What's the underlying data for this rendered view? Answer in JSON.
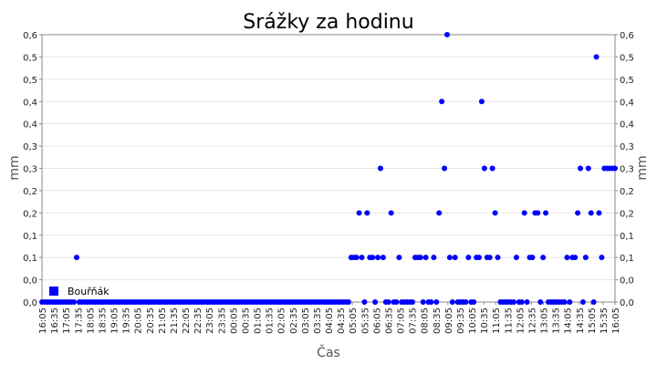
{
  "chart_data": {
    "type": "scatter",
    "title": "Srážky za hodinu",
    "xlabel": "Čas",
    "ylabel": "mm",
    "ylabel_right": "mm",
    "ylim": [
      0,
      0.6
    ],
    "yticks": [
      0,
      0.05,
      0.1,
      0.15,
      0.2,
      0.25,
      0.3,
      0.35,
      0.4,
      0.45,
      0.5,
      0.55,
      0.6
    ],
    "ytick_labels": [
      "0,0",
      "0,0",
      "0,1",
      "0,1",
      "0,2",
      "0,2",
      "0,3",
      "0,3",
      "0,4",
      "0,4",
      "0,5",
      "0,5",
      "0,6"
    ],
    "xtick_labels": [
      "16:05",
      "16:35",
      "17:05",
      "17:35",
      "18:05",
      "18:35",
      "19:05",
      "19:35",
      "20:05",
      "20:35",
      "21:05",
      "21:35",
      "22:05",
      "22:35",
      "23:05",
      "23:35",
      "00:05",
      "00:35",
      "01:05",
      "01:35",
      "02:05",
      "02:35",
      "03:05",
      "03:35",
      "04:05",
      "04:35",
      "05:05",
      "05:35",
      "06:05",
      "06:35",
      "07:05",
      "07:35",
      "08:05",
      "08:35",
      "09:05",
      "09:35",
      "10:05",
      "10:35",
      "11:05",
      "11:35",
      "12:05",
      "12:35",
      "13:05",
      "13:35",
      "14:05",
      "14:35",
      "15:05",
      "15:35",
      "16:05"
    ],
    "grid": true,
    "legend_position": "bottom-left",
    "series": [
      {
        "name": "Bouřňák",
        "color": "#0000ff",
        "values": [
          0,
          0,
          0,
          0,
          0,
          0,
          0,
          0,
          0,
          0,
          0,
          0,
          0,
          0.1,
          0,
          0,
          0,
          0,
          0,
          0,
          0,
          0,
          0,
          0,
          0,
          0,
          0,
          0,
          0,
          0,
          0,
          0,
          0,
          0,
          0,
          0,
          0,
          0,
          0,
          0,
          0,
          0,
          0,
          0,
          0,
          0,
          0,
          0,
          0,
          0,
          0,
          0,
          0,
          0,
          0,
          0,
          0,
          0,
          0,
          0,
          0,
          0,
          0,
          0,
          0,
          0,
          0,
          0,
          0,
          0,
          0,
          0,
          0,
          0,
          0,
          0,
          0,
          0,
          0,
          0,
          0,
          0,
          0,
          0,
          0,
          0,
          0,
          0,
          0,
          0,
          0,
          0,
          0,
          0,
          0,
          0,
          0,
          0,
          0,
          0,
          0,
          0,
          0,
          0,
          0,
          0,
          0,
          0,
          0,
          0,
          0,
          0,
          0,
          0,
          0,
          0,
          0.1,
          0.1,
          0.1,
          0.2,
          0.1,
          0,
          0.2,
          0.1,
          0.1,
          0,
          0.1,
          0.3,
          0.1,
          0,
          0,
          0.2,
          0,
          0,
          0.1,
          0,
          0,
          0,
          0,
          0,
          0.1,
          0.1,
          0.1,
          0,
          0.1,
          0,
          0,
          0.1,
          0,
          0.2,
          0.45,
          0.3,
          0.6,
          0.1,
          0,
          0.1,
          0,
          0,
          0,
          0,
          0.1,
          0,
          0,
          0.1,
          0.1,
          0.45,
          0.3,
          0.1,
          0.1,
          0.3,
          0.2,
          0.1,
          0,
          0,
          0,
          0,
          0,
          0,
          0.1,
          0,
          0,
          0.2,
          0,
          0.1,
          0.1,
          0.2,
          0.2,
          0,
          0.1,
          0.2,
          0,
          0,
          0,
          0,
          0,
          0,
          0,
          0.1,
          0,
          0.1,
          0.1,
          0.2,
          0.3,
          0,
          0.1,
          0.3,
          0.2,
          0,
          0.55,
          0.2,
          0.1,
          0.3,
          0.3,
          0.3,
          0.3,
          0.3
        ]
      }
    ]
  }
}
